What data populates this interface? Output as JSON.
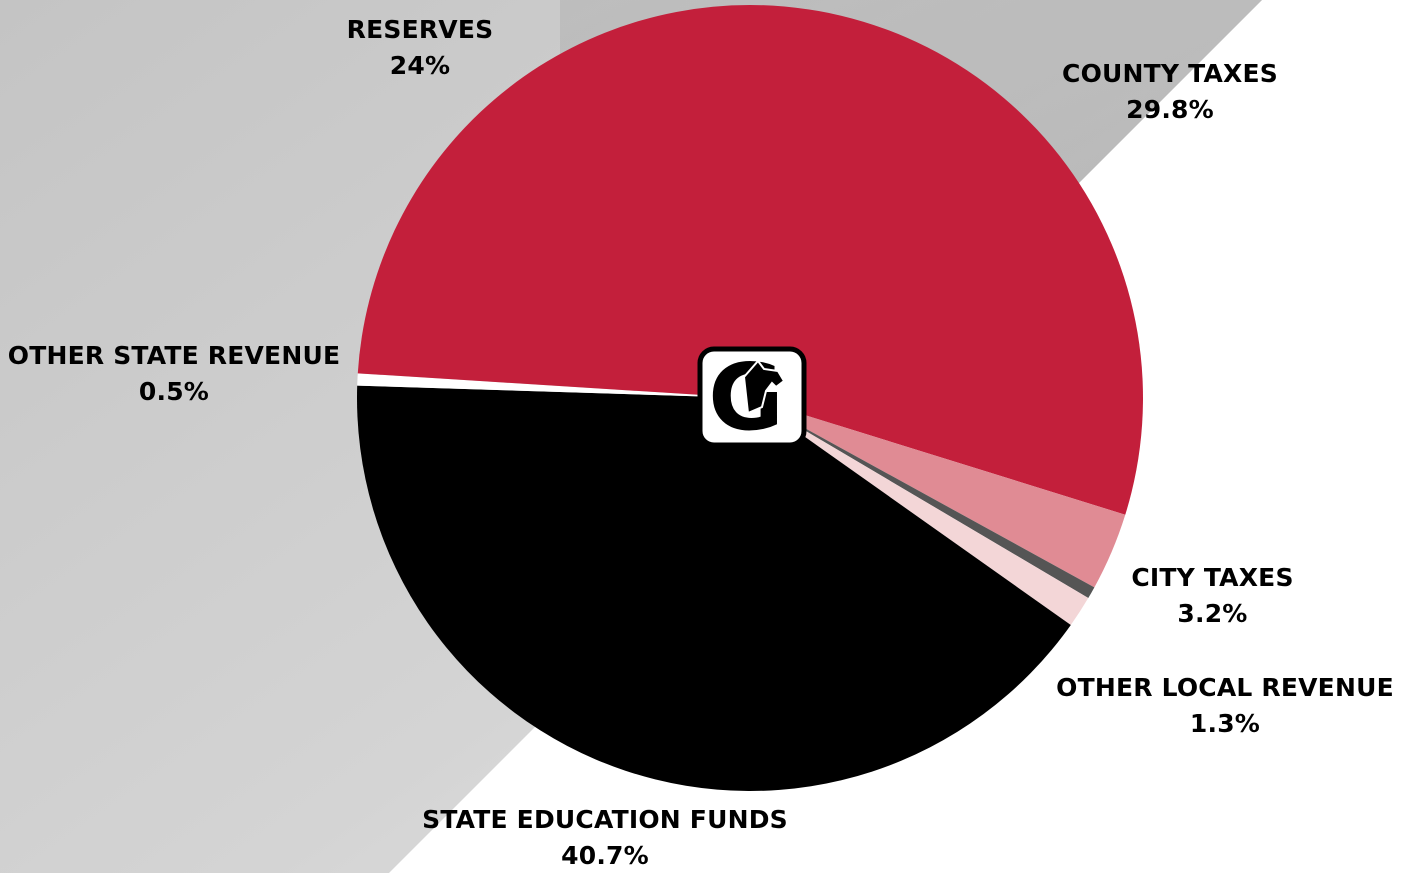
{
  "colors": {
    "background_light": "#ffffff",
    "background_grey": "#cccccc",
    "county_taxes": "#c31f3b",
    "city_taxes": "#e08b94",
    "other_local_revenue_dark": "#555555",
    "other_local_revenue": "#f3d6d7",
    "state_education_funds": "#000000",
    "other_state_revenue": "#ffffff",
    "reserves": "#c31f3b"
  },
  "logo": {
    "letter": "G",
    "icon": "mustang-head-icon"
  },
  "chart_data": {
    "type": "pie",
    "start": "top",
    "direction": "clockwise",
    "slices": [
      {
        "name": "COUNTY TAXES",
        "value_label": "29.8%",
        "value": 29.8
      },
      {
        "name": "CITY TAXES",
        "value_label": "3.2%",
        "value": 3.2
      },
      {
        "name": "",
        "value_label": "",
        "value": 0.5
      },
      {
        "name": "OTHER LOCAL REVENUE",
        "value_label": "1.3%",
        "value": 1.3
      },
      {
        "name": "STATE EDUCATION FUNDS",
        "value_label": "40.7%",
        "value": 40.7
      },
      {
        "name": "OTHER STATE REVENUE",
        "value_label": "0.5%",
        "value": 0.5
      },
      {
        "name": "RESERVES",
        "value_label": "24%",
        "value": 24
      }
    ]
  }
}
